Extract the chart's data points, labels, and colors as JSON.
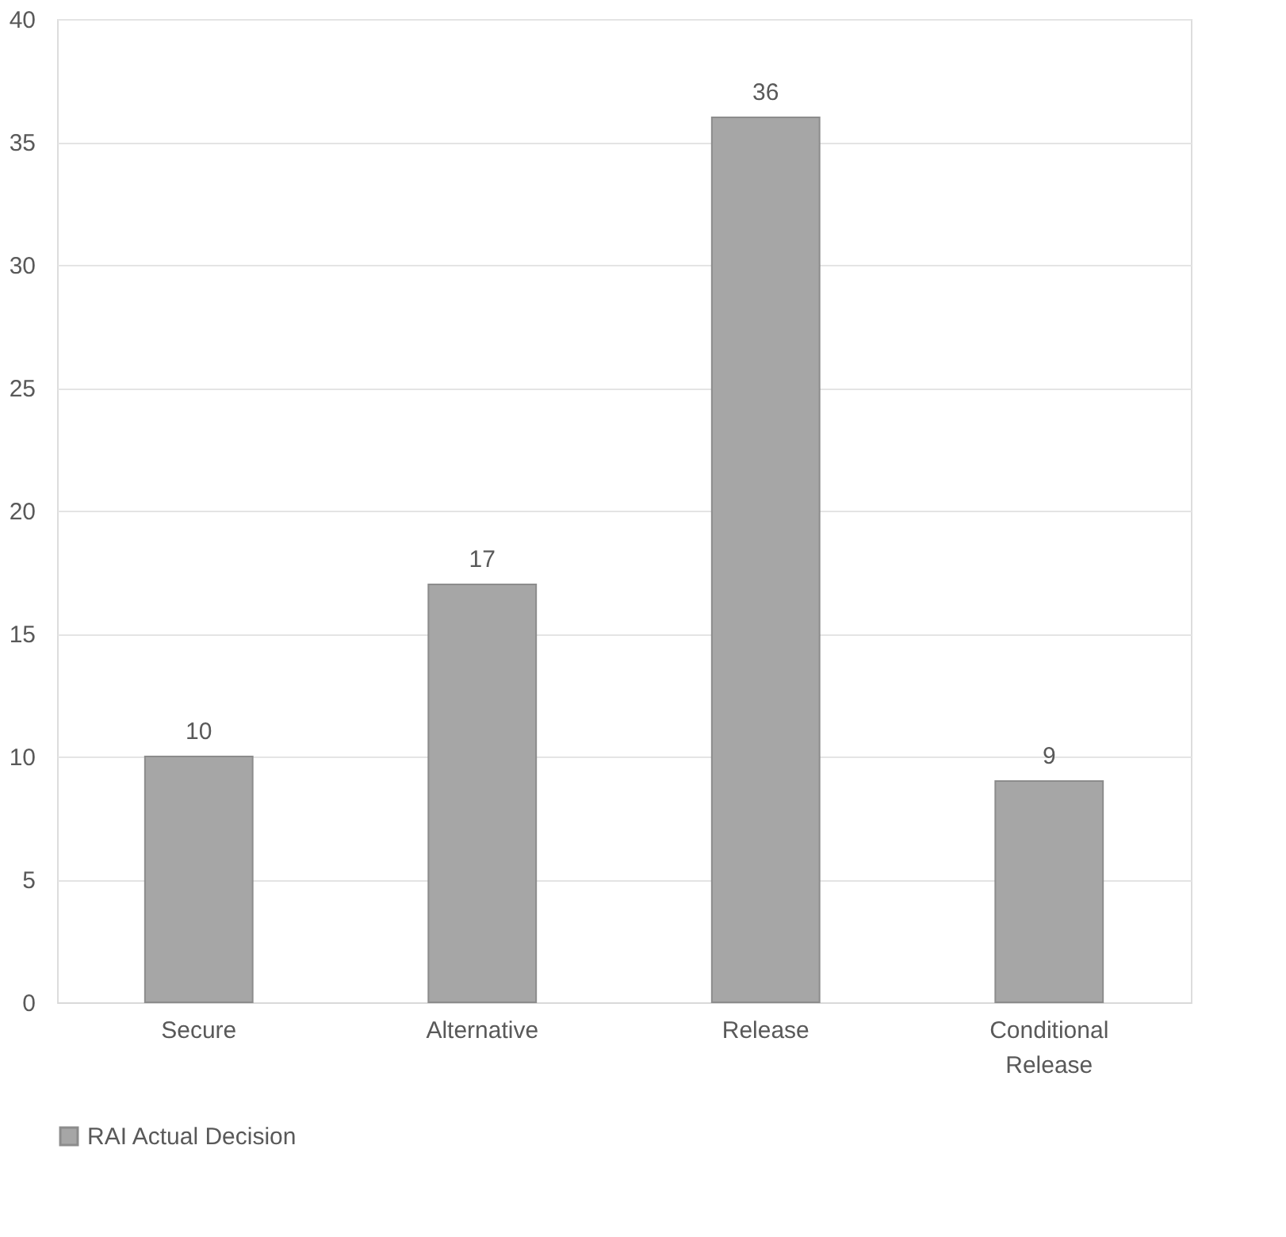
{
  "chart_data": {
    "type": "bar",
    "categories": [
      "Secure",
      "Alternative",
      "Release",
      "Conditional Release"
    ],
    "series": [
      {
        "name": "RAI Actual Decision",
        "color": "#a6a6a6",
        "values": [
          10,
          17,
          36,
          9
        ]
      }
    ],
    "ylim": [
      0,
      40
    ],
    "yticks": [
      0,
      5,
      10,
      15,
      20,
      25,
      30,
      35,
      40
    ],
    "grid": "y",
    "legend": "bottom",
    "data_labels": true
  }
}
